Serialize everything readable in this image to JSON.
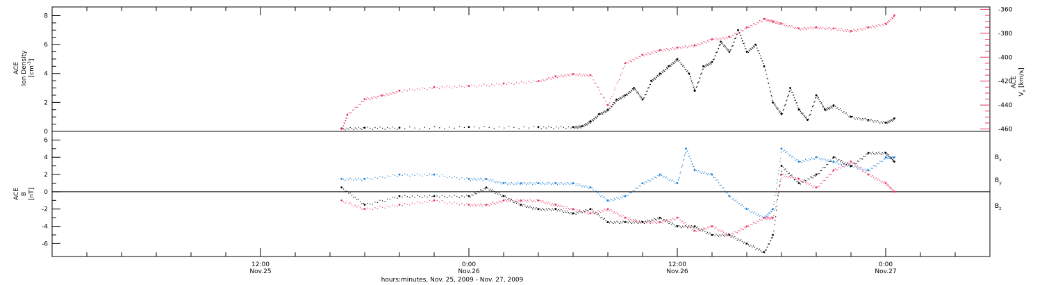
{
  "colors": {
    "black": "#000000",
    "pink": "#e8365f",
    "blue": "#1a7fd8"
  },
  "chart_data": [
    {
      "type": "scatter",
      "panel": "top",
      "ylabel_left": [
        "ACE",
        "Ion Density",
        "[cm",
        "-3",
        "]"
      ],
      "ylabel_right": [
        "ACE",
        "V",
        "x",
        " [km/s]"
      ],
      "ylim_left": [
        0,
        8.6
      ],
      "yticks_left": [
        "0",
        "2",
        "4",
        "6",
        "8"
      ],
      "ylim_right": [
        -462,
        -358
      ],
      "yticks_right": [
        "-460",
        "-440",
        "-420",
        "-400",
        "-380",
        "-360"
      ],
      "series": [
        {
          "color": "black",
          "axis": "left",
          "x": [
            "11/25 16:40",
            "11/25 18:00",
            "11/25 20:00",
            "11/26 00:00",
            "11/26 04:00",
            "11/26 06:00",
            "11/26 06:30",
            "11/26 07:00",
            "11/26 07:30",
            "11/26 08:00",
            "11/26 08:30",
            "11/26 09:00",
            "11/26 09:30",
            "11/26 10:00",
            "11/26 10:30",
            "11/26 11:00",
            "11/26 11:30",
            "11/26 12:00",
            "11/26 12:40",
            "11/26 13:00",
            "11/26 13:30",
            "11/26 14:00",
            "11/26 14:30",
            "11/26 15:00",
            "11/26 15:30",
            "11/26 16:00",
            "11/26 16:30",
            "11/26 17:00",
            "11/26 17:30",
            "11/26 18:00",
            "11/26 18:30",
            "11/26 19:00",
            "11/26 19:30",
            "11/26 20:00",
            "11/26 20:30",
            "11/26 21:00",
            "11/26 22:00",
            "11/26 23:00",
            "11/27 00:00",
            "11/27 00:30"
          ],
          "values": [
            0.2,
            0.25,
            0.25,
            0.3,
            0.3,
            0.3,
            0.35,
            0.7,
            1.2,
            1.5,
            2.2,
            2.5,
            3.0,
            2.2,
            3.5,
            4.0,
            4.5,
            5.0,
            4.0,
            2.8,
            4.5,
            4.8,
            6.2,
            5.5,
            7.0,
            5.5,
            6.0,
            4.5,
            2.0,
            1.2,
            3.0,
            1.5,
            0.8,
            2.5,
            1.5,
            1.8,
            1.0,
            0.8,
            0.6,
            0.9
          ]
        },
        {
          "color": "pink",
          "axis": "right",
          "x": [
            "11/25 16:40",
            "11/25 17:00",
            "11/25 18:00",
            "11/25 19:00",
            "11/25 20:00",
            "11/25 22:00",
            "11/26 00:00",
            "11/26 02:00",
            "11/26 04:00",
            "11/26 05:00",
            "11/26 06:00",
            "11/26 07:00",
            "11/26 08:00",
            "11/26 09:00",
            "11/26 10:00",
            "11/26 11:00",
            "11/26 12:00",
            "11/26 13:00",
            "11/26 14:00",
            "11/26 15:00",
            "11/26 16:00",
            "11/26 17:00",
            "11/26 17:30",
            "11/26 18:00",
            "11/26 19:00",
            "11/26 20:00",
            "11/26 21:00",
            "11/26 22:00",
            "11/26 23:00",
            "11/27 00:00",
            "11/27 00:30"
          ],
          "values": [
            -460,
            -448,
            -435,
            -432,
            -428,
            -425,
            -424,
            -422,
            -420,
            -416,
            -414,
            -415,
            -440,
            -405,
            -398,
            -394,
            -392,
            -390,
            -385,
            -383,
            -375,
            -368,
            -370,
            -372,
            -376,
            -375,
            -376,
            -378,
            -375,
            -372,
            -365
          ]
        }
      ]
    },
    {
      "type": "scatter",
      "panel": "bottom",
      "ylabel_left": [
        "ACE",
        "B",
        "[nT]"
      ],
      "ylim": [
        -7.5,
        7
      ],
      "yticks": [
        "-6",
        "-4",
        "-2",
        "0",
        "2",
        "4",
        "6"
      ],
      "xlabel": "hours:minutes, Nov. 25, 2009 - Nov. 27, 2009",
      "xticks": [
        {
          "time": "12:00",
          "date": "Nov.25"
        },
        {
          "time": "0:00",
          "date": "Nov.26"
        },
        {
          "time": "12:00",
          "date": "Nov.26"
        },
        {
          "time": "0:00",
          "date": "Nov.27"
        }
      ],
      "legend": [
        "B",
        "B",
        "B"
      ],
      "legend_subscripts": [
        "x",
        "y",
        "z"
      ],
      "series": [
        {
          "color": "black",
          "x": [
            "11/25 16:40",
            "11/25 18:00",
            "11/25 20:00",
            "11/25 22:00",
            "11/26 00:00",
            "11/26 01:00",
            "11/26 02:00",
            "11/26 03:00",
            "11/26 04:00",
            "11/26 05:00",
            "11/26 06:00",
            "11/26 07:00",
            "11/26 08:00",
            "11/26 09:00",
            "11/26 10:00",
            "11/26 11:00",
            "11/26 12:00",
            "11/26 13:00",
            "11/26 14:00",
            "11/26 15:00",
            "11/26 16:00",
            "11/26 17:00",
            "11/26 17:30",
            "11/26 18:00",
            "11/26 19:00",
            "11/26 20:00",
            "11/26 21:00",
            "11/26 22:00",
            "11/26 23:00",
            "11/27 00:00",
            "11/27 00:30"
          ],
          "values": [
            0.5,
            -1.5,
            -0.5,
            -0.5,
            -0.5,
            0.5,
            -0.5,
            -1.5,
            -2.0,
            -2.0,
            -2.5,
            -2.0,
            -3.5,
            -3.5,
            -3.5,
            -3.0,
            -4.0,
            -4.0,
            -5.0,
            -5.0,
            -6.0,
            -7.0,
            -5.0,
            3.0,
            1.0,
            2.0,
            4.0,
            3.0,
            4.5,
            4.5,
            3.5
          ]
        },
        {
          "color": "blue",
          "x": [
            "11/25 16:40",
            "11/25 18:00",
            "11/25 20:00",
            "11/25 22:00",
            "11/26 00:00",
            "11/26 01:00",
            "11/26 02:00",
            "11/26 03:00",
            "11/26 04:00",
            "11/26 05:00",
            "11/26 06:00",
            "11/26 07:00",
            "11/26 08:00",
            "11/26 09:00",
            "11/26 10:00",
            "11/26 11:00",
            "11/26 12:00",
            "11/26 12:30",
            "11/26 13:00",
            "11/26 14:00",
            "11/26 15:00",
            "11/26 16:00",
            "11/26 17:00",
            "11/26 17:30",
            "11/26 18:00",
            "11/26 19:00",
            "11/26 20:00",
            "11/26 21:00",
            "11/26 22:00",
            "11/26 23:00",
            "11/27 00:00",
            "11/27 00:30"
          ],
          "values": [
            1.5,
            1.5,
            2.0,
            2.0,
            1.5,
            1.5,
            1.0,
            1.0,
            1.0,
            1.0,
            1.0,
            0.5,
            -1.0,
            -0.5,
            1.0,
            2.0,
            1.0,
            5.0,
            2.5,
            2.0,
            -0.5,
            -2.0,
            -3.0,
            -2.0,
            5.0,
            3.5,
            4.0,
            3.5,
            3.0,
            2.5,
            4.0,
            4.0
          ]
        },
        {
          "color": "pink",
          "x": [
            "11/25 16:40",
            "11/25 18:00",
            "11/25 20:00",
            "11/25 22:00",
            "11/26 00:00",
            "11/26 01:00",
            "11/26 02:00",
            "11/26 03:00",
            "11/26 04:00",
            "11/26 05:00",
            "11/26 06:00",
            "11/26 07:00",
            "11/26 08:00",
            "11/26 09:00",
            "11/26 10:00",
            "11/26 11:00",
            "11/26 12:00",
            "11/26 13:00",
            "11/26 14:00",
            "11/26 15:00",
            "11/26 16:00",
            "11/26 17:00",
            "11/26 17:30",
            "11/26 18:00",
            "11/26 19:00",
            "11/26 20:00",
            "11/26 21:00",
            "11/26 22:00",
            "11/26 23:00",
            "11/27 00:00",
            "11/27 00:30"
          ],
          "values": [
            -1.0,
            -2.0,
            -1.5,
            -1.0,
            -1.5,
            -1.5,
            -1.0,
            -1.0,
            -1.0,
            -1.5,
            -2.0,
            -2.5,
            -2.0,
            -3.0,
            -3.5,
            -3.5,
            -3.0,
            -4.5,
            -4.0,
            -5.0,
            -4.0,
            -3.0,
            -3.0,
            2.0,
            1.5,
            0.5,
            2.5,
            3.5,
            2.0,
            1.0,
            0.0
          ]
        }
      ]
    }
  ]
}
